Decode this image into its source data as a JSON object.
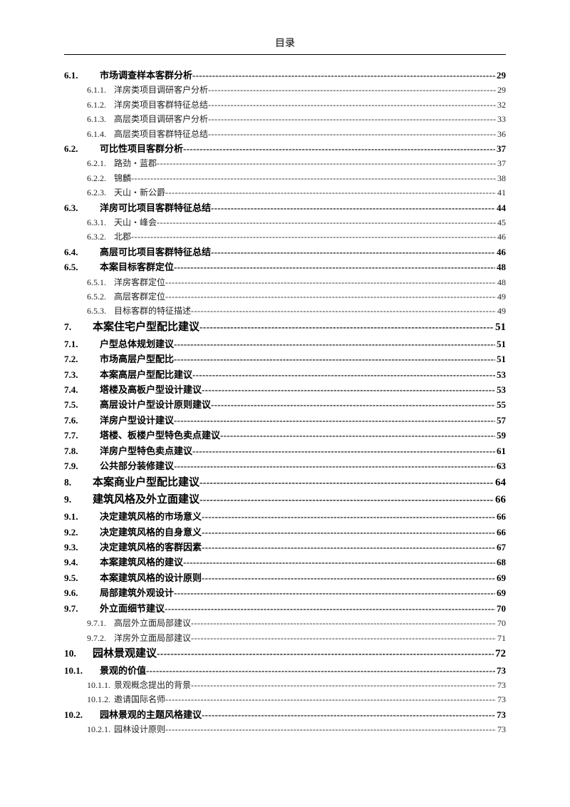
{
  "header_title": "目录",
  "colors": {
    "text": "#000000",
    "background": "#ffffff"
  },
  "font": {
    "family": "SimSun",
    "body_size_pt": 10,
    "header_size_pt": 12
  },
  "toc": [
    {
      "level": 2,
      "num": "6.1.",
      "title": "市场调查样本客群分析",
      "page": "29"
    },
    {
      "level": 3,
      "num": "6.1.1.",
      "title": "洋房类项目调研客户分析",
      "page": "29"
    },
    {
      "level": 3,
      "num": "6.1.2.",
      "title": "洋房类项目客群特征总结",
      "page": "32"
    },
    {
      "level": 3,
      "num": "6.1.3.",
      "title": "高层类项目调研客户分析",
      "page": "33"
    },
    {
      "level": 3,
      "num": "6.1.4.",
      "title": "高层类项目客群特征总结",
      "page": "36"
    },
    {
      "level": 2,
      "num": "6.2.",
      "title": "可比性项目客群分析",
      "page": "37"
    },
    {
      "level": 3,
      "num": "6.2.1.",
      "title": "路劲・蓝郡",
      "page": "37"
    },
    {
      "level": 3,
      "num": "6.2.2.",
      "title": "锦麟",
      "page": "38"
    },
    {
      "level": 3,
      "num": "6.2.3.",
      "title": "天山・新公爵",
      "page": "41"
    },
    {
      "level": 2,
      "num": "6.3.",
      "title": "洋房可比项目客群特征总结",
      "page": "44"
    },
    {
      "level": 3,
      "num": "6.3.1.",
      "title": "天山・峰会",
      "page": "45"
    },
    {
      "level": 3,
      "num": "6.3.2.",
      "title": "北郡",
      "page": "46"
    },
    {
      "level": 2,
      "num": "6.4.",
      "title": "高层可比项目客群特征总结",
      "page": "46"
    },
    {
      "level": 2,
      "num": "6.5.",
      "title": "本案目标客群定位",
      "page": "48"
    },
    {
      "level": 3,
      "num": "6.5.1.",
      "title": "洋房客群定位",
      "page": "48"
    },
    {
      "level": 3,
      "num": "6.5.2.",
      "title": "高层客群定位",
      "page": "49"
    },
    {
      "level": 3,
      "num": "6.5.3.",
      "title": "目标客群的特征描述",
      "page": "49"
    },
    {
      "level": 1,
      "num": "7.",
      "title": "本案住宅户型配比建议",
      "page": "51"
    },
    {
      "level": 2,
      "num": "7.1.",
      "title": "户型总体规划建议",
      "page": "51"
    },
    {
      "level": 2,
      "num": "7.2.",
      "title": "市场高层户型配比",
      "page": "51"
    },
    {
      "level": 2,
      "num": "7.3.",
      "title": "本案高层户型配比建议",
      "page": "53"
    },
    {
      "level": 2,
      "num": "7.4.",
      "title": "塔楼及高板户型设计建议",
      "page": "53"
    },
    {
      "level": 2,
      "num": "7.5.",
      "title": "高层设计户型设计原则建议",
      "page": "55"
    },
    {
      "level": 2,
      "num": "7.6.",
      "title": "洋房户型设计建议",
      "page": "57"
    },
    {
      "level": 2,
      "num": "7.7.",
      "title": "塔楼、板楼户型特色卖点建议",
      "page": "59"
    },
    {
      "level": 2,
      "num": "7.8.",
      "title": "洋房户型特色卖点建议",
      "page": "61"
    },
    {
      "level": 2,
      "num": "7.9.",
      "title": "公共部分装修建议",
      "page": "63"
    },
    {
      "level": 1,
      "num": "8.",
      "title": "本案商业户型配比建议",
      "page": "64"
    },
    {
      "level": 1,
      "num": "9.",
      "title": "建筑风格及外立面建议",
      "page": "66"
    },
    {
      "level": 2,
      "num": "9.1.",
      "title": "决定建筑风格的市场意义",
      "page": "66"
    },
    {
      "level": 2,
      "num": "9.2.",
      "title": "决定建筑风格的自身意义",
      "page": "66"
    },
    {
      "level": 2,
      "num": "9.3.",
      "title": "决定建筑风格的客群因素",
      "page": "67"
    },
    {
      "level": 2,
      "num": "9.4.",
      "title": "本案建筑风格的建议",
      "page": "68"
    },
    {
      "level": 2,
      "num": "9.5.",
      "title": "本案建筑风格的设计原则",
      "page": "69"
    },
    {
      "level": 2,
      "num": "9.6.",
      "title": "局部建筑外观设计",
      "page": "69"
    },
    {
      "level": 2,
      "num": "9.7.",
      "title": "外立面细节建议",
      "page": "70"
    },
    {
      "level": 3,
      "num": "9.7.1.",
      "title": "高层外立面局部建议",
      "page": "70"
    },
    {
      "level": 3,
      "num": "9.7.2.",
      "title": "洋房外立面局部建议",
      "page": "71"
    },
    {
      "level": 1,
      "num": "10.",
      "title": "园林景观建议",
      "page": "72"
    },
    {
      "level": 2,
      "num": "10.1.",
      "title": "景观的价值",
      "page": "73"
    },
    {
      "level": 3,
      "num": "10.1.1.",
      "title": "景观概念提出的背景",
      "page": "73"
    },
    {
      "level": 3,
      "num": "10.1.2.",
      "title": "邀请国际名师",
      "page": "73"
    },
    {
      "level": 2,
      "num": "10.2.",
      "title": "园林景观的主题风格建议",
      "page": "73"
    },
    {
      "level": 3,
      "num": "10.2.1.",
      "title": "园林设计原则",
      "page": "73"
    }
  ]
}
